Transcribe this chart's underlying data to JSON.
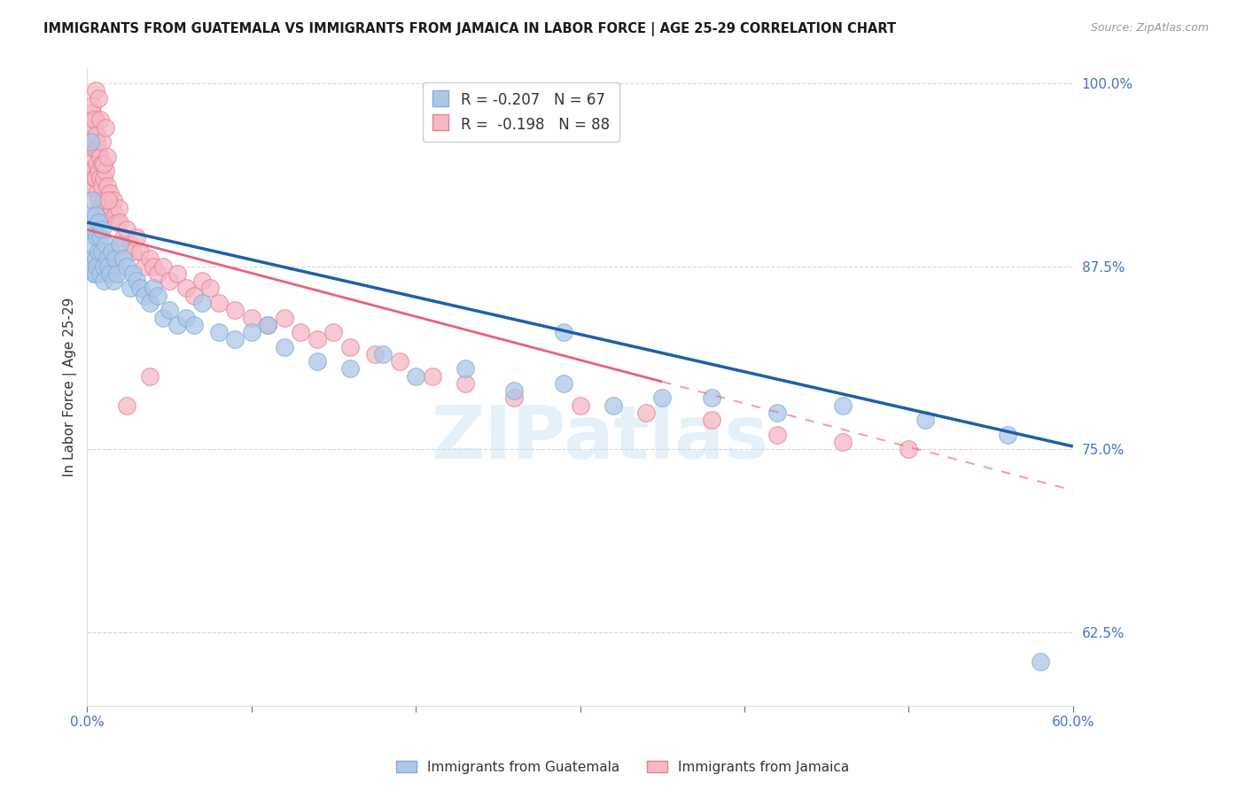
{
  "title": "IMMIGRANTS FROM GUATEMALA VS IMMIGRANTS FROM JAMAICA IN LABOR FORCE | AGE 25-29 CORRELATION CHART",
  "source": "Source: ZipAtlas.com",
  "ylabel": "In Labor Force | Age 25-29",
  "xlim": [
    0.0,
    0.6
  ],
  "ylim": [
    0.575,
    1.01
  ],
  "yticks": [
    0.625,
    0.75,
    0.875,
    1.0
  ],
  "ytick_labels": [
    "62.5%",
    "75.0%",
    "87.5%",
    "100.0%"
  ],
  "xticks": [
    0.0,
    0.1,
    0.2,
    0.3,
    0.4,
    0.5,
    0.6
  ],
  "xtick_labels": [
    "0.0%",
    "",
    "",
    "",
    "",
    "",
    "60.0%"
  ],
  "watermark_text": "ZIPatlas",
  "guatemala_color": "#aec6e8",
  "guatemala_edge": "#7bafd4",
  "jamaica_color": "#f5b8c4",
  "jamaica_edge": "#e87f94",
  "trend_guatemala_color": "#1f5fa6",
  "trend_jamaica_color": "#e8607a",
  "background_color": "#ffffff",
  "grid_color": "#cccccc",
  "axis_color": "#4472c4",
  "R_guatemala": -0.207,
  "N_guatemala": 67,
  "R_jamaica": -0.198,
  "N_jamaica": 88,
  "trend_g_x0": 0.0,
  "trend_g_y0": 0.905,
  "trend_g_x1": 0.6,
  "trend_g_y1": 0.752,
  "trend_j_x0": 0.0,
  "trend_j_y0": 0.9,
  "trend_j_x1": 0.6,
  "trend_j_y1": 0.722,
  "guatemala_scatter": {
    "x": [
      0.001,
      0.002,
      0.002,
      0.003,
      0.003,
      0.003,
      0.004,
      0.004,
      0.005,
      0.005,
      0.005,
      0.006,
      0.006,
      0.007,
      0.007,
      0.008,
      0.008,
      0.009,
      0.009,
      0.01,
      0.01,
      0.011,
      0.012,
      0.013,
      0.014,
      0.015,
      0.016,
      0.017,
      0.018,
      0.02,
      0.022,
      0.024,
      0.026,
      0.028,
      0.03,
      0.032,
      0.035,
      0.038,
      0.04,
      0.043,
      0.046,
      0.05,
      0.055,
      0.06,
      0.065,
      0.07,
      0.08,
      0.09,
      0.1,
      0.11,
      0.12,
      0.14,
      0.16,
      0.18,
      0.2,
      0.23,
      0.26,
      0.29,
      0.32,
      0.35,
      0.38,
      0.42,
      0.46,
      0.51,
      0.56,
      0.29,
      0.58
    ],
    "y": [
      0.9,
      0.96,
      0.91,
      0.88,
      0.92,
      0.89,
      0.87,
      0.9,
      0.91,
      0.88,
      0.87,
      0.895,
      0.875,
      0.905,
      0.885,
      0.895,
      0.87,
      0.9,
      0.885,
      0.875,
      0.865,
      0.89,
      0.88,
      0.875,
      0.87,
      0.885,
      0.865,
      0.88,
      0.87,
      0.89,
      0.88,
      0.875,
      0.86,
      0.87,
      0.865,
      0.86,
      0.855,
      0.85,
      0.86,
      0.855,
      0.84,
      0.845,
      0.835,
      0.84,
      0.835,
      0.85,
      0.83,
      0.825,
      0.83,
      0.835,
      0.82,
      0.81,
      0.805,
      0.815,
      0.8,
      0.805,
      0.79,
      0.795,
      0.78,
      0.785,
      0.785,
      0.775,
      0.78,
      0.77,
      0.76,
      0.83,
      0.605
    ]
  },
  "jamaica_scatter": {
    "x": [
      0.001,
      0.001,
      0.002,
      0.002,
      0.002,
      0.003,
      0.003,
      0.003,
      0.004,
      0.004,
      0.004,
      0.005,
      0.005,
      0.005,
      0.006,
      0.006,
      0.006,
      0.007,
      0.007,
      0.007,
      0.008,
      0.008,
      0.008,
      0.009,
      0.009,
      0.009,
      0.01,
      0.01,
      0.011,
      0.012,
      0.013,
      0.014,
      0.015,
      0.016,
      0.017,
      0.018,
      0.019,
      0.02,
      0.022,
      0.024,
      0.026,
      0.028,
      0.03,
      0.032,
      0.035,
      0.038,
      0.04,
      0.043,
      0.046,
      0.05,
      0.055,
      0.06,
      0.065,
      0.07,
      0.075,
      0.08,
      0.09,
      0.1,
      0.11,
      0.12,
      0.13,
      0.14,
      0.15,
      0.16,
      0.175,
      0.19,
      0.21,
      0.23,
      0.26,
      0.3,
      0.34,
      0.38,
      0.42,
      0.46,
      0.5,
      0.003,
      0.004,
      0.005,
      0.006,
      0.007,
      0.008,
      0.009,
      0.01,
      0.011,
      0.012,
      0.013,
      0.024,
      0.038
    ],
    "y": [
      0.96,
      0.94,
      0.97,
      0.95,
      0.93,
      0.98,
      0.96,
      0.94,
      0.97,
      0.955,
      0.935,
      0.975,
      0.955,
      0.935,
      0.96,
      0.945,
      0.925,
      0.955,
      0.94,
      0.92,
      0.95,
      0.935,
      0.915,
      0.945,
      0.93,
      0.91,
      0.935,
      0.92,
      0.94,
      0.93,
      0.92,
      0.925,
      0.915,
      0.92,
      0.91,
      0.905,
      0.915,
      0.905,
      0.895,
      0.9,
      0.89,
      0.885,
      0.895,
      0.885,
      0.875,
      0.88,
      0.875,
      0.87,
      0.875,
      0.865,
      0.87,
      0.86,
      0.855,
      0.865,
      0.86,
      0.85,
      0.845,
      0.84,
      0.835,
      0.84,
      0.83,
      0.825,
      0.83,
      0.82,
      0.815,
      0.81,
      0.8,
      0.795,
      0.785,
      0.78,
      0.775,
      0.77,
      0.76,
      0.755,
      0.75,
      0.985,
      0.975,
      0.995,
      0.965,
      0.99,
      0.975,
      0.96,
      0.945,
      0.97,
      0.95,
      0.92,
      0.78,
      0.8
    ]
  },
  "bottom_legend": [
    {
      "label": "Immigrants from Guatemala",
      "color": "#aec6e8",
      "edge": "#7bafd4"
    },
    {
      "label": "Immigrants from Jamaica",
      "color": "#f5b8c4",
      "edge": "#e87f94"
    }
  ]
}
